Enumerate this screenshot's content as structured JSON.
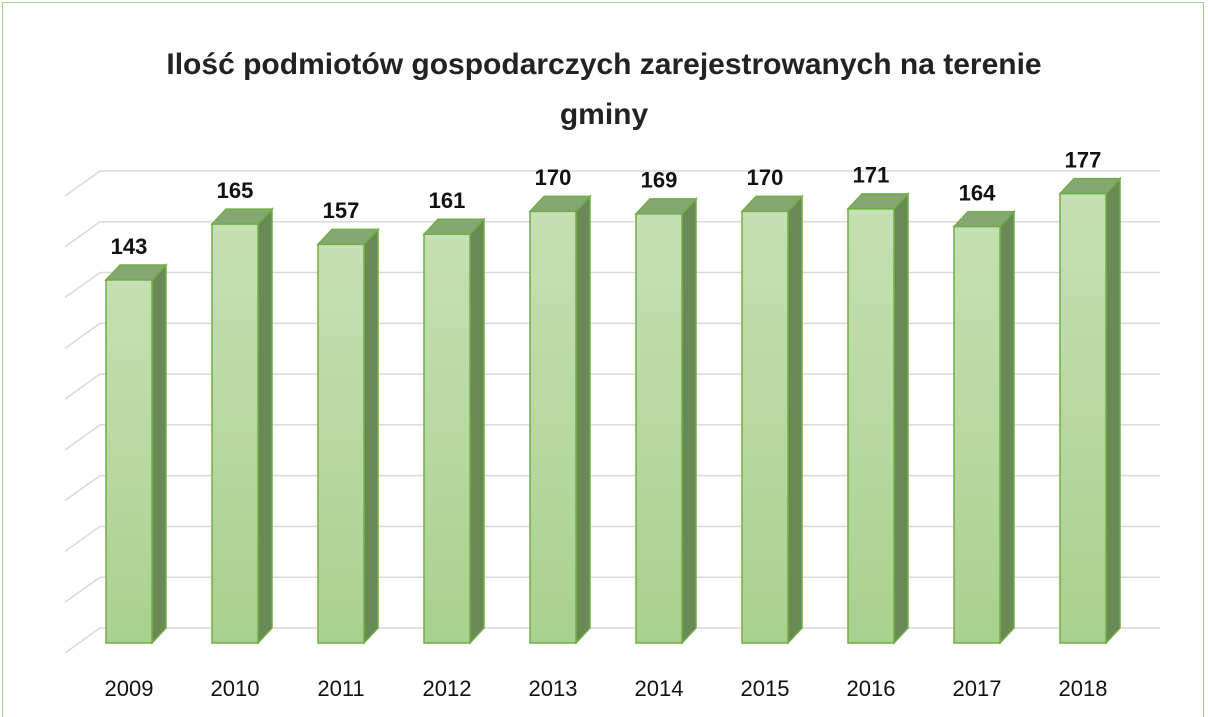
{
  "chart_data": {
    "type": "bar3d",
    "title": "Ilość podmiotów gospodarczych zarejestrowanych na terenie gminy",
    "categories": [
      "2009",
      "2010",
      "2011",
      "2012",
      "2013",
      "2014",
      "2015",
      "2016",
      "2017",
      "2018"
    ],
    "values": [
      143,
      165,
      157,
      161,
      170,
      169,
      170,
      171,
      164,
      177
    ],
    "color": "#a9d18e",
    "ylim": [
      0,
      180
    ],
    "yticks": [
      0,
      20,
      40,
      60,
      80,
      100,
      120,
      140,
      160,
      180
    ],
    "grid": true
  }
}
